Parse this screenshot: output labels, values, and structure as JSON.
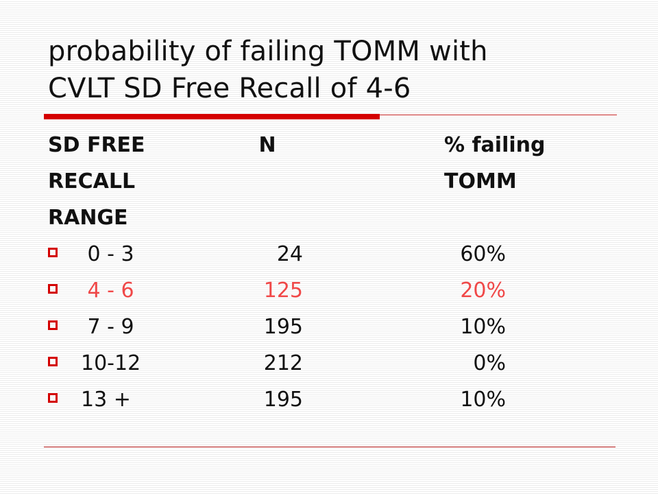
{
  "slide": {
    "title_line1": "probability of failing TOMM with",
    "title_line2": "CVLT SD Free Recall of 4-6",
    "accent_color": "#d40000",
    "highlight_color": "#f04848"
  },
  "table": {
    "headers": {
      "range": [
        "SD FREE",
        "RECALL",
        "RANGE"
      ],
      "n": "N",
      "pct": [
        "% failing",
        "TOMM"
      ]
    },
    "rows": [
      {
        "range": " 0 - 3",
        "n": "24",
        "pct": "60%"
      },
      {
        "range": " 4 - 6",
        "n": "125",
        "pct": "20%"
      },
      {
        "range": " 7 - 9",
        "n": "195",
        "pct": "10%"
      },
      {
        "range": "10-12",
        "n": "212",
        "pct": "0%"
      },
      {
        "range": "13 +",
        "n": "195",
        "pct": "10%"
      }
    ],
    "highlighted_row_index": 1
  }
}
